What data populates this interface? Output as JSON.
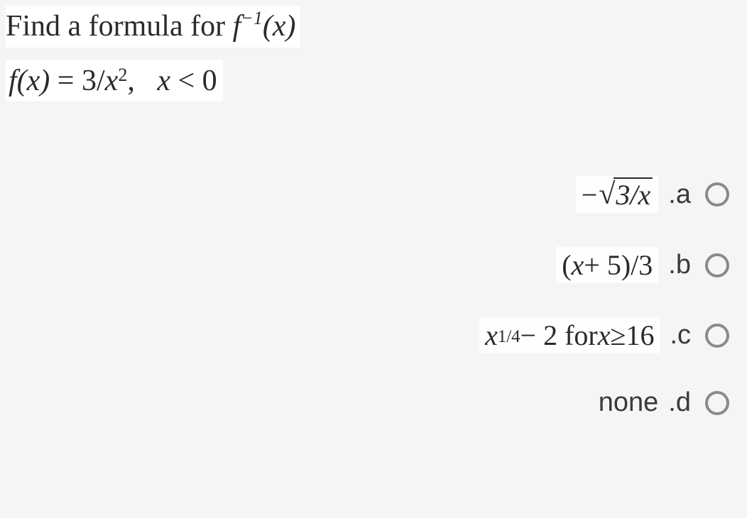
{
  "question": {
    "line1_prefix": "Find a formula for ",
    "line1_func": "f",
    "line1_exp": "−1",
    "line1_arg": "(x)",
    "line2_func": "f",
    "line2_arg": "(x)",
    "line2_eq": " = 3/",
    "line2_var": "x",
    "line2_exp": "2",
    "line2_cond_sep": ",   ",
    "line2_cond_var": "x",
    "line2_cond_rest": " < 0"
  },
  "options": {
    "a": {
      "label": ".a",
      "minus": "−",
      "sqrt_sym": "√",
      "sqrt_body": "3/x"
    },
    "b": {
      "label": ".b",
      "expr_open": "(",
      "expr_var": "x",
      "expr_plus": " + 5)/3"
    },
    "c": {
      "label": ".c",
      "var": "x",
      "exp": "1/4",
      "mid": " − 2 for ",
      "var2": "x",
      "ge": " ≥ ",
      "val": "16"
    },
    "d": {
      "label": ".d",
      "text": "none"
    }
  },
  "colors": {
    "page_bg": "#f5f5f5",
    "text": "#2a2a2a",
    "label_text": "#3a3a3a",
    "radio_border": "#8a8a8a",
    "highlight_bg": "#ffffff"
  }
}
